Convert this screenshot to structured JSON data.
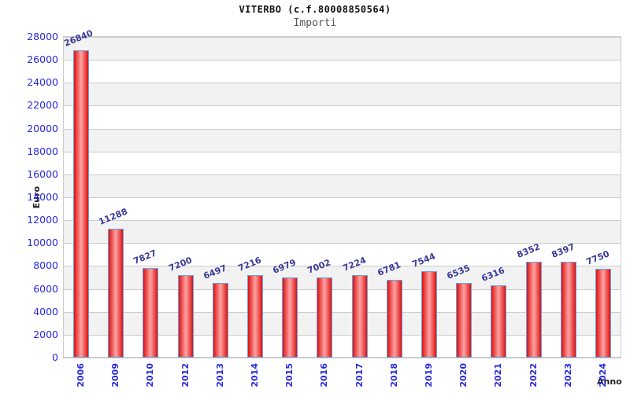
{
  "chart_data": {
    "type": "bar",
    "title": "VITERBO (c.f.80008850564)",
    "subtitle": "Importi",
    "xlabel": "Anno",
    "ylabel": "Euro",
    "categories": [
      "2006",
      "2009",
      "2010",
      "2012",
      "2013",
      "2014",
      "2015",
      "2016",
      "2017",
      "2018",
      "2019",
      "2020",
      "2021",
      "2022",
      "2023",
      "2024"
    ],
    "values": [
      26840,
      11288,
      7827,
      7200,
      6497,
      7216,
      6979,
      7002,
      7224,
      6781,
      7544,
      6535,
      6316,
      8352,
      8397,
      7750
    ],
    "ylim": [
      0,
      28000
    ],
    "yticks": [
      0,
      2000,
      4000,
      6000,
      8000,
      10000,
      12000,
      14000,
      16000,
      18000,
      20000,
      22000,
      24000,
      26000,
      28000
    ],
    "grid": "horizontal",
    "banded_background": true,
    "legend": "none",
    "colors": {
      "title": "#111111",
      "subtitle": "#555555",
      "axis_title": "#222222",
      "tick_label": "#2929e0",
      "value_label": "#3a3a99",
      "bar_fill_edge": "#dd1111",
      "bar_fill_mid": "#ffa3a3",
      "bar_border": "#66a3dd",
      "band": "#f2f2f2",
      "gridline": "#cccccc",
      "background": "#ffffff"
    }
  }
}
